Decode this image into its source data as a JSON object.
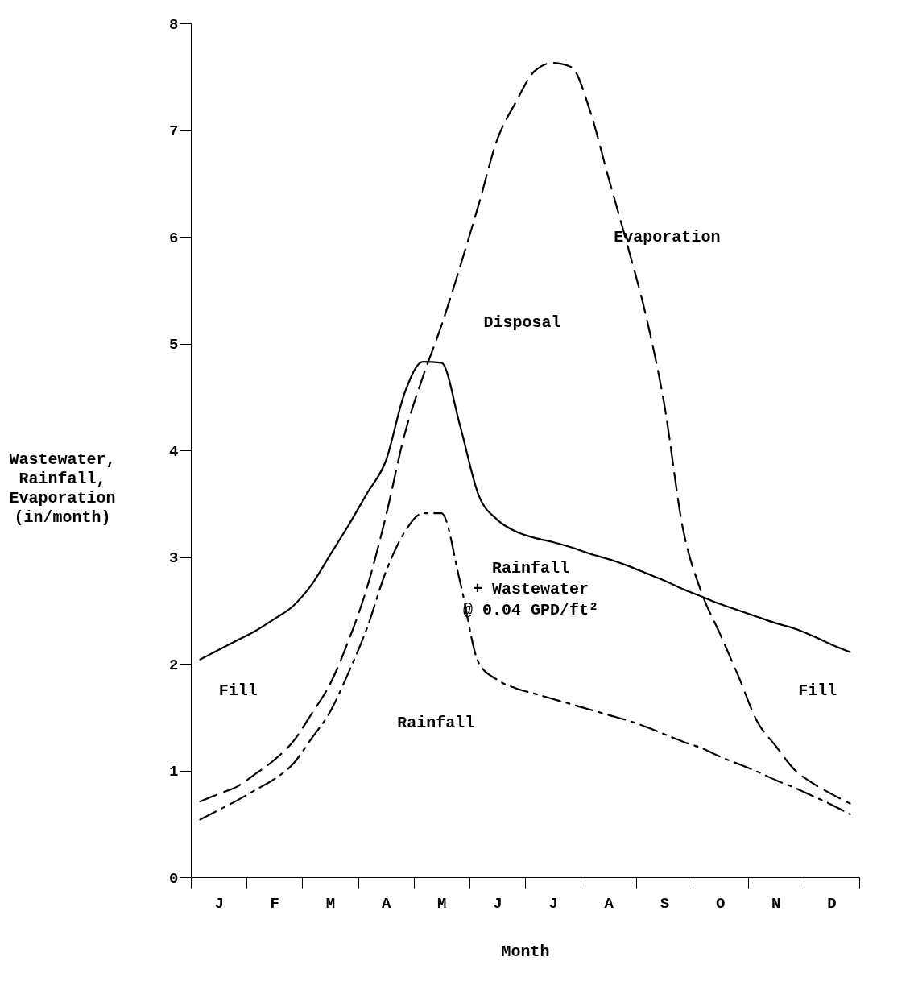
{
  "chart_data": {
    "type": "line",
    "xlabel": "Month",
    "ylabel": "Wastewater,\nRainfall,\nEvaporation\n\n(in/month)",
    "categories": [
      null,
      "J",
      null,
      null,
      "F",
      null,
      null,
      "M",
      null,
      null,
      "A",
      null,
      null,
      "M",
      null,
      null,
      "J",
      null,
      null,
      "J",
      null,
      null,
      "A",
      null,
      null,
      "S",
      null,
      null,
      "O",
      null,
      null,
      "N",
      null,
      null,
      "D",
      null
    ],
    "ylim": [
      0,
      8
    ],
    "yticks": [
      0,
      1,
      2,
      3,
      4,
      5,
      6,
      7,
      8
    ],
    "grid": false,
    "series": [
      {
        "name": "Evaporation",
        "color": "#000000",
        "line_style": "dashed",
        "values": [
          0.71,
          0.78,
          0.85,
          0.97,
          1.1,
          1.27,
          1.53,
          1.81,
          2.22,
          2.72,
          3.38,
          4.14,
          4.69,
          5.17,
          5.72,
          6.3,
          6.91,
          7.26,
          7.55,
          7.63,
          7.59,
          7.18,
          6.55,
          5.93,
          5.27,
          4.43,
          3.27,
          2.67,
          2.28,
          1.88,
          1.46,
          1.23,
          1.01,
          0.88,
          0.78,
          0.69
        ]
      },
      {
        "name": "Rainfall + Wastewater @ 0.04 GPD/ft²",
        "color": "#000000",
        "line_style": "solid",
        "values": [
          2.04,
          2.13,
          2.22,
          2.31,
          2.42,
          2.54,
          2.74,
          3.02,
          3.3,
          3.6,
          3.9,
          4.53,
          4.83,
          4.82,
          4.23,
          3.58,
          3.35,
          3.24,
          3.18,
          3.14,
          3.09,
          3.03,
          2.98,
          2.92,
          2.85,
          2.78,
          2.7,
          2.63,
          2.56,
          2.5,
          2.44,
          2.38,
          2.33,
          2.26,
          2.18,
          2.11
        ]
      },
      {
        "name": "Rainfall",
        "color": "#000000",
        "line_style": "dashdot",
        "values": [
          0.54,
          0.63,
          0.72,
          0.82,
          0.92,
          1.06,
          1.3,
          1.55,
          1.92,
          2.34,
          2.86,
          3.23,
          3.41,
          3.41,
          2.77,
          2.01,
          1.85,
          1.77,
          1.72,
          1.67,
          1.62,
          1.57,
          1.52,
          1.47,
          1.41,
          1.34,
          1.27,
          1.21,
          1.13,
          1.06,
          0.99,
          0.91,
          0.84,
          0.76,
          0.68,
          0.59
        ]
      }
    ],
    "annotations": [
      "Disposal",
      "Fill",
      "Fill"
    ]
  }
}
